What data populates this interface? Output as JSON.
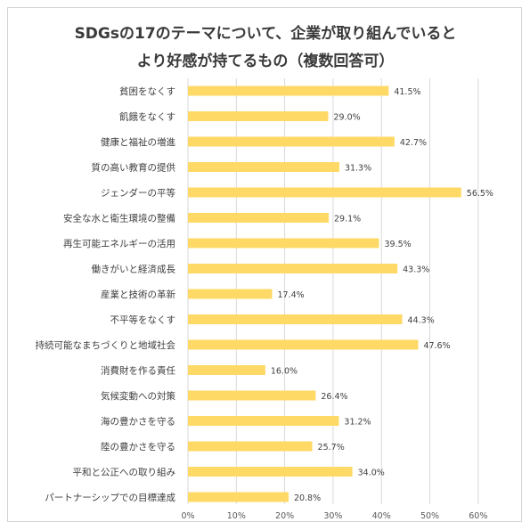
{
  "chart_data": {
    "type": "bar",
    "orientation": "horizontal",
    "title_lines": [
      "SDGsの17のテーマについて、企業が取り組んでいると",
      "より好感が持てるもの（複数回答可）"
    ],
    "categories": [
      "貧困をなくす",
      "飢餓をなくす",
      "健康と福祉の増進",
      "質の高い教育の提供",
      "ジェンダーの平等",
      "安全な水と衛生環境の整備",
      "再生可能エネルギーの活用",
      "働きがいと経済成長",
      "産業と技術の革新",
      "不平等をなくす",
      "持続可能なまちづくりと地域社会",
      "消費財を作る責任",
      "気候変動への対策",
      "海の豊かさを守る",
      "陸の豊かさを守る",
      "平和と公正への取り組み",
      "パートナーシップでの目標達成"
    ],
    "values": [
      41.5,
      29.0,
      42.7,
      31.3,
      56.5,
      29.1,
      39.5,
      43.3,
      17.4,
      44.3,
      47.6,
      16.0,
      26.4,
      31.2,
      25.7,
      34.0,
      20.8
    ],
    "value_labels": [
      "41.5%",
      "29.0%",
      "42.7%",
      "31.3%",
      "56.5%",
      "29.1%",
      "39.5%",
      "43.3%",
      "17.4%",
      "44.3%",
      "47.6%",
      "16.0%",
      "26.4%",
      "31.2%",
      "25.7%",
      "34.0%",
      "20.8%"
    ],
    "xlim": [
      0,
      60
    ],
    "x_ticks": [
      0,
      10,
      20,
      30,
      40,
      50,
      60
    ],
    "x_tick_labels": [
      "0%",
      "10%",
      "20%",
      "30%",
      "40%",
      "50%",
      "60%"
    ],
    "grid": true,
    "legend": "none",
    "bar_color": "#ffd966",
    "grid_color": "#d9d9d9"
  }
}
